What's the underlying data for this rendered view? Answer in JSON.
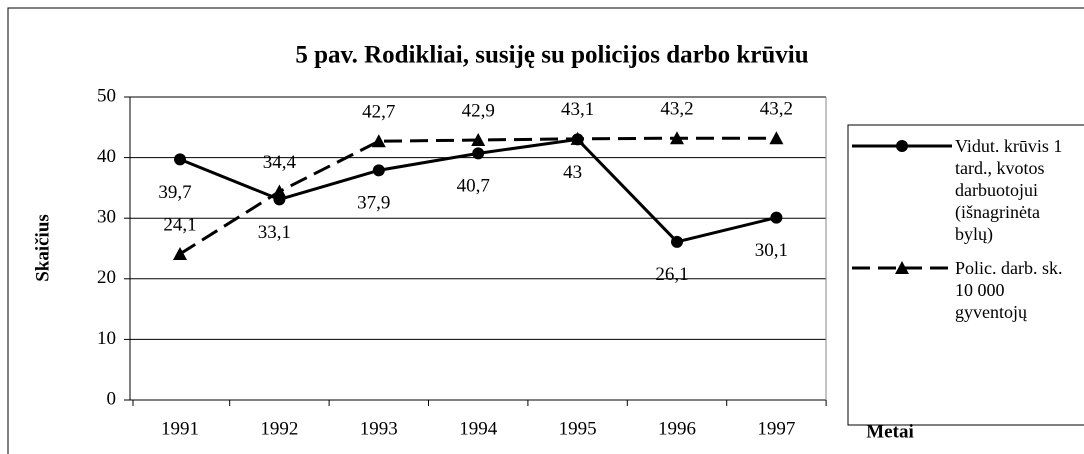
{
  "chart_data": {
    "type": "line",
    "title": "5 pav. Rodikliai, susiję su policijos darbo krūviu",
    "x_label": "Metai",
    "y_label": "Skaičius",
    "categories": [
      "1991",
      "1992",
      "1993",
      "1994",
      "1995",
      "1996",
      "1997"
    ],
    "series": [
      {
        "name": "Vidut. krūvis 1 tard., kvotos darbuotojui (išnagrinėta bylų)",
        "color": "#000000",
        "marker": "circle",
        "dash": false,
        "values": [
          39.7,
          33.1,
          37.9,
          40.7,
          43,
          26.1,
          30.1
        ],
        "value_labels": [
          "39,7",
          "33,1",
          "37,9",
          "40,7",
          "43",
          "26,1",
          "30,1"
        ]
      },
      {
        "name": "Polic. darb. sk. 10 000 gyventojų",
        "color": "#000000",
        "marker": "triangle",
        "dash": true,
        "values": [
          24.1,
          34.4,
          42.7,
          42.9,
          43.1,
          43.2,
          43.2
        ],
        "value_labels": [
          "24,1",
          "34,4",
          "42,7",
          "42,9",
          "43,1",
          "43,2",
          "43,2"
        ]
      }
    ],
    "ylim": [
      0,
      50
    ],
    "yticks": [
      0,
      10,
      20,
      30,
      40,
      50
    ],
    "grid": true,
    "legend": "right"
  }
}
